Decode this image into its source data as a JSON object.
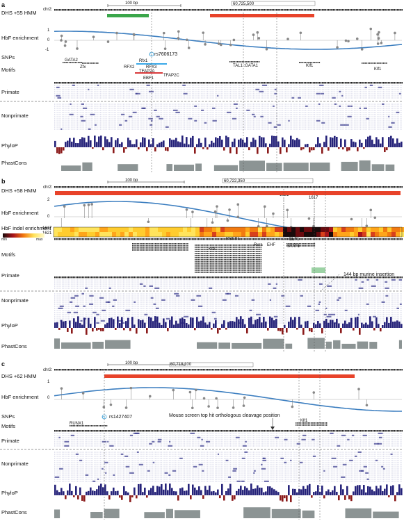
{
  "panels": [
    {
      "letter": "a",
      "chrom": "chr2:",
      "scale": "100 bp",
      "coord": "60,725,500",
      "track_labels": [
        "DHS +55 HMM",
        "HbF enrichment",
        "SNPs",
        "Motifs",
        "Primate",
        "Nonprimate",
        "PhyloP",
        "PhastCons"
      ],
      "yticks": [
        "1",
        "0",
        "-1"
      ],
      "snp": "rs7606173",
      "motifs": [
        "GATA2",
        "Zfx",
        "Rfx1",
        "RFX2",
        "RFX3",
        "TFAP2A",
        "EBF1",
        "TFAP2C",
        "TAL1::GATA1",
        "Klf1",
        "Klf1"
      ]
    },
    {
      "letter": "b",
      "chrom": "chr2:",
      "scale": "100 bp",
      "coord": "60,722,350",
      "track_labels": [
        "DHS +58 HMM",
        "HbF enrichment",
        "HbF indel enrichment",
        "Motifs",
        "Primate",
        "Nonprimate",
        "PhyloP",
        "PhastCons"
      ],
      "yticks": [
        "2",
        "0"
      ],
      "markers": [
        "1621",
        "1617"
      ],
      "heat_rows": [
        "1617",
        "1621"
      ],
      "legend": {
        "min": "min",
        "max": "max"
      },
      "motifs": [
        "RREB1",
        "Klf1",
        "Rxra",
        "EHF",
        "ELF1",
        "STAT1"
      ],
      "annotation": "144 bp murine insertion"
    },
    {
      "letter": "c",
      "chrom": "chr2:",
      "scale": "100 bp",
      "coord": "60,718,100",
      "track_labels": [
        "DHS +62 HMM",
        "HbF enrichment",
        "SNPs",
        "Motifs",
        "Primate",
        "Nonprimate",
        "PhyloP",
        "PhastCons"
      ],
      "yticks": [
        "1",
        "0"
      ],
      "snp": "rs1427407",
      "motifs": [
        "RUNX1",
        "Klf1"
      ],
      "annotation": "Mouse screen top hit orthologous cleavage position"
    }
  ],
  "colors": {
    "dhs_red": "#e8432a",
    "dhs_green": "#3aa64a",
    "curve": "#3d7fc0",
    "phylop_pos": "#26237a",
    "phylop_neg": "#8b1b1b",
    "phastcons": "#8c9494",
    "aln": "#3b3c8f"
  }
}
